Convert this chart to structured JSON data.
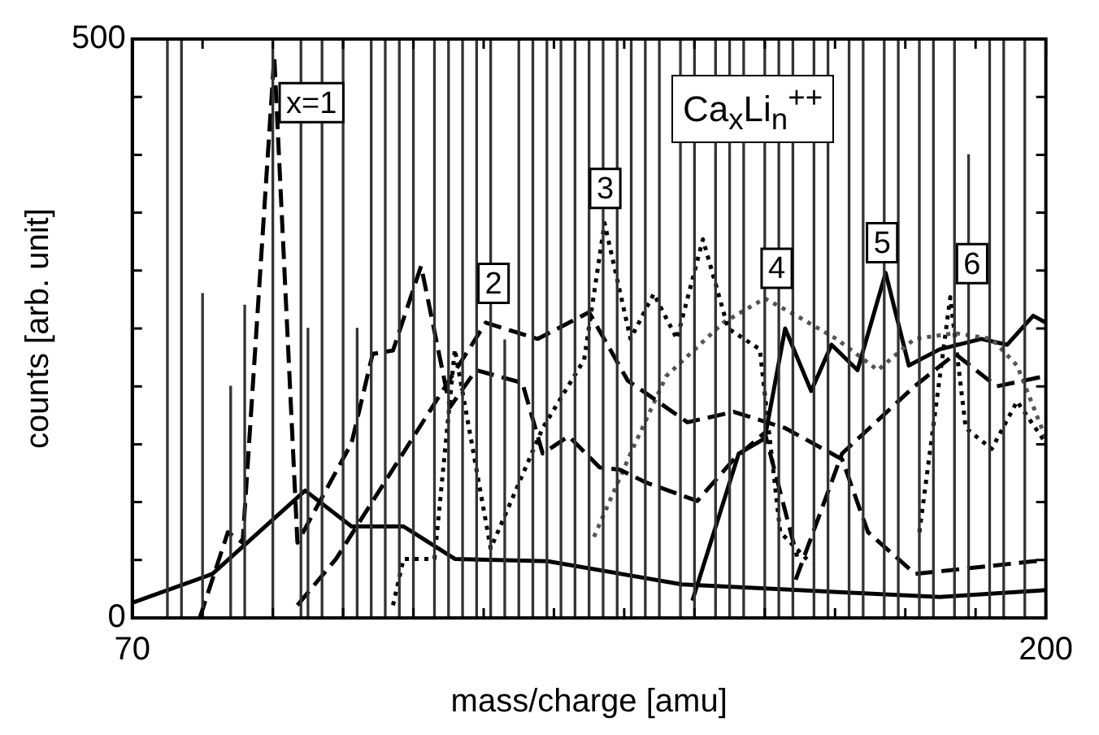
{
  "chart_data": {
    "type": "line",
    "xlabel": "mass/charge [amu]",
    "ylabel": "counts [arb. unit]",
    "xlim": [
      70,
      200
    ],
    "ylim": [
      0,
      500
    ],
    "xticks": [
      70,
      {
        "value": 80,
        "label": null
      },
      {
        "value": 90,
        "label": null
      },
      {
        "value": 100,
        "label": null
      },
      {
        "value": 110,
        "label": null
      },
      {
        "value": 120,
        "label": null
      },
      {
        "value": 130,
        "label": null
      },
      {
        "value": 140,
        "label": null
      },
      {
        "value": 150,
        "label": null
      },
      {
        "value": 160,
        "label": null
      },
      {
        "value": 170,
        "label": null
      },
      {
        "value": 180,
        "label": null
      },
      {
        "value": 190,
        "label": null
      },
      200
    ],
    "yticks": [
      0,
      {
        "value": 50,
        "label": null
      },
      {
        "value": 100,
        "label": null
      },
      {
        "value": 150,
        "label": null
      },
      {
        "value": 200,
        "label": null
      },
      {
        "value": 250,
        "label": null
      },
      {
        "value": 300,
        "label": null
      },
      {
        "value": 350,
        "label": null
      },
      {
        "value": 400,
        "label": null
      },
      {
        "value": 450,
        "label": null
      },
      500
    ],
    "grid": false,
    "legend": false,
    "series": [
      {
        "type": "bar",
        "color": "#333333",
        "x": [
          75,
          77,
          80,
          84,
          86,
          90,
          94,
          95,
          97,
          100,
          102,
          104,
          106,
          108,
          110,
          113,
          115,
          117,
          119,
          121,
          123,
          125,
          127,
          129,
          131,
          133,
          135,
          137,
          139,
          141,
          143,
          145,
          148,
          150,
          153,
          155,
          157,
          160,
          162,
          164,
          167,
          169,
          172,
          174,
          177,
          179,
          182,
          184,
          187,
          189,
          192,
          194,
          197
        ],
        "values": [
          500,
          500,
          280,
          200,
          270,
          500,
          500,
          250,
          500,
          500,
          250,
          500,
          500,
          500,
          500,
          500,
          500,
          500,
          500,
          500,
          240,
          500,
          500,
          500,
          500,
          500,
          500,
          500,
          500,
          500,
          500,
          500,
          500,
          500,
          500,
          500,
          500,
          500,
          500,
          500,
          500,
          500,
          500,
          500,
          500,
          500,
          500,
          500,
          500,
          400,
          500,
          500,
          500
        ]
      },
      {
        "color": "#000000",
        "line_style": "solid",
        "x": [
          70,
          81.4,
          94.6,
          101.2,
          108.6,
          115.9,
          129.1,
          148.2,
          184.9,
          200
        ],
        "values": [
          13,
          38,
          110,
          79,
          79,
          51,
          49,
          29,
          18,
          24
        ]
      },
      {
        "color": "#000000",
        "line_style": "dashed",
        "x": [
          79.6,
          83.6,
          85.7,
          90.2,
          93.5,
          101.2,
          104.2,
          107.1,
          111.1,
          115.2,
          118.9,
          125.5,
          128.4,
          132.1,
          136.5,
          139.4,
          143.1,
          150.4,
          155.6,
          160,
          164.6
        ],
        "values": [
          0,
          74,
          65,
          485,
          65,
          151,
          228,
          231,
          304,
          182,
          214,
          203,
          142,
          157,
          130,
          128,
          117,
          101,
          137,
          160,
          53
        ]
      },
      {
        "color": "#000000",
        "line_style": "dashed",
        "x": [
          93.5,
          99,
          120.3,
          127.7,
          135,
          140.5,
          149,
          155.6,
          162.9,
          171,
          174.7,
          181.4,
          200
        ],
        "values": [
          11,
          51,
          255,
          241,
          264,
          205,
          169,
          178,
          164,
          137,
          74,
          38,
          50
        ]
      },
      {
        "color": "#000000",
        "line_style": "dotted",
        "x": [
          107.1,
          108.6,
          113,
          115.9,
          121,
          128.4,
          134.3,
          137.2,
          140.9,
          144.2,
          147.5,
          151.2,
          154.8,
          159.3,
          162.2,
          166.6
        ],
        "values": [
          11,
          51,
          51,
          232,
          60,
          164,
          223,
          341,
          241,
          280,
          241,
          327,
          250,
          232,
          74,
          47
        ]
      },
      {
        "color": "#555555",
        "line_style": "dotted",
        "x": [
          135.7,
          140.9,
          146,
          154.1,
          160,
          165.1,
          170.2,
          176.1,
          181.3,
          187.1,
          192.3,
          195.9,
          200
        ],
        "values": [
          70,
          142,
          209,
          255,
          276,
          259,
          241,
          214,
          241,
          246,
          241,
          218,
          155
        ]
      },
      {
        "color": "#000000",
        "line_style": "solid",
        "x": [
          149.7,
          156.3,
          160,
          162.9,
          166.6,
          169.5,
          173.2,
          177.2,
          180.5,
          184.9,
          190.8,
          194.5,
          198.2,
          200
        ],
        "values": [
          15,
          142,
          155,
          250,
          196,
          236,
          214,
          298,
          218,
          232,
          241,
          236,
          261,
          255
        ]
      },
      {
        "color": "#000000",
        "line_style": "dashed",
        "x": [
          164.4,
          171,
          181.3,
          187.1,
          193,
          200
        ],
        "values": [
          33,
          142,
          200,
          228,
          200,
          209
        ]
      },
      {
        "color": "#000000",
        "line_style": "dotted",
        "x": [
          182,
          186.4,
          188.6,
          192.3,
          195.9,
          200
        ],
        "values": [
          74,
          277,
          164,
          146,
          187,
          151
        ]
      }
    ],
    "annotations": [
      {
        "text": "x=1",
        "x": 95.5,
        "y": 445
      },
      {
        "text": "2",
        "x": 121.4,
        "y": 289
      },
      {
        "text": "3",
        "x": 137.3,
        "y": 371
      },
      {
        "text": "4",
        "x": 161.7,
        "y": 302
      },
      {
        "text": "5",
        "x": 176.7,
        "y": 324
      },
      {
        "text": "6",
        "x": 189.5,
        "y": 306
      },
      "Ca$_{x}$Li$_{n}$$^{++}$"
    ]
  }
}
